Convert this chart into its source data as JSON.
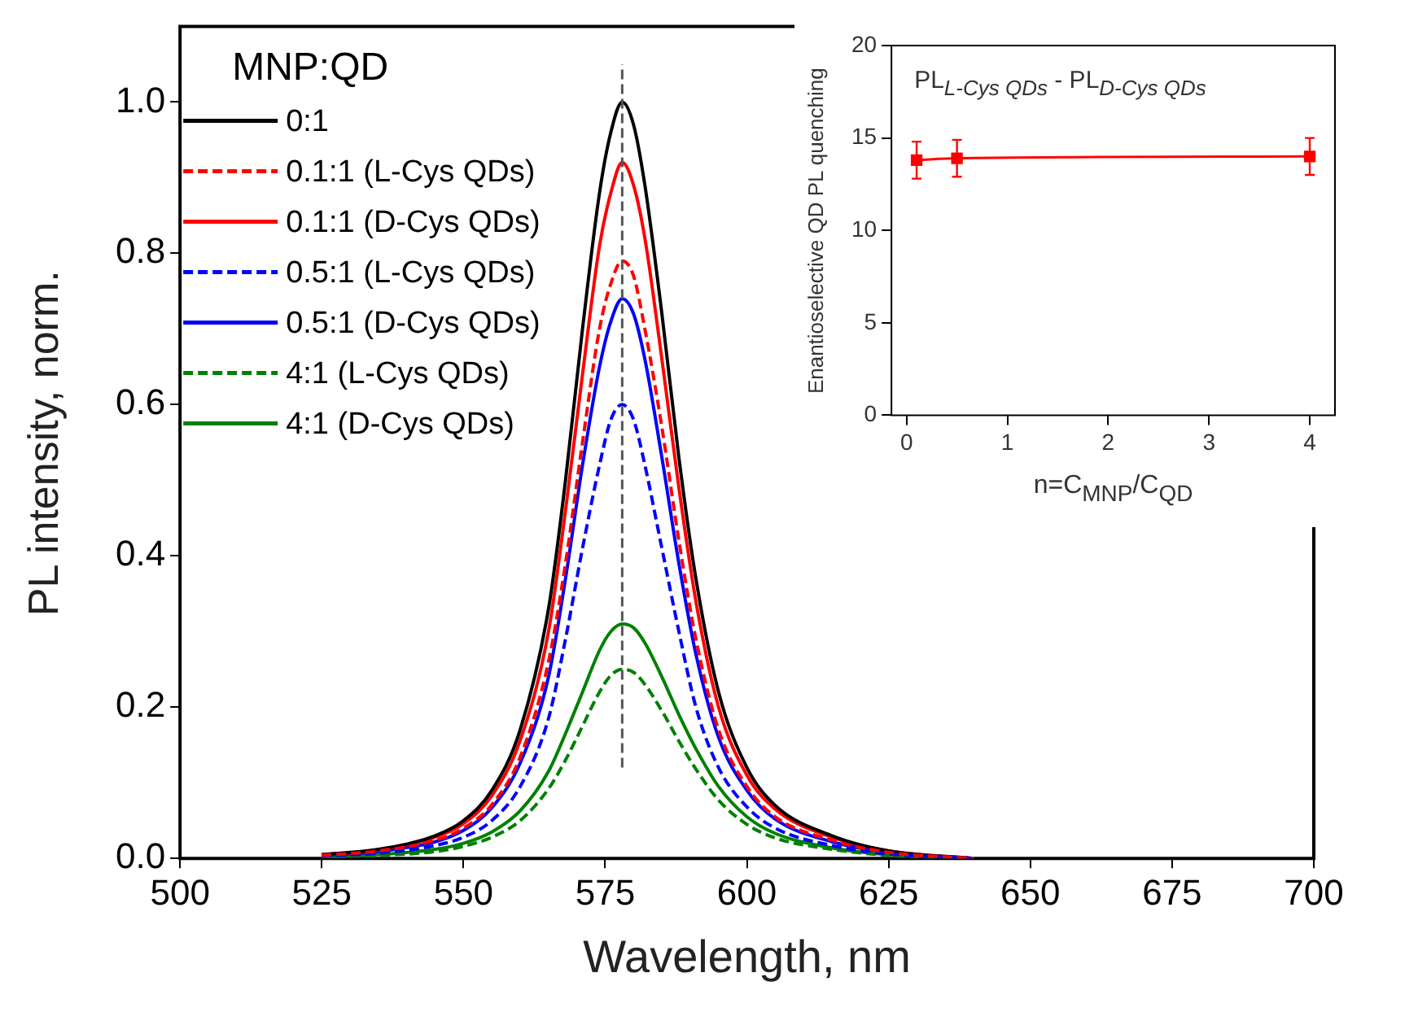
{
  "chart_data": [
    {
      "type": "line",
      "xlabel": "Wavelength, nm",
      "ylabel": "PL intensity, norm.",
      "legend_title": "MNP:QD",
      "legend": "top left",
      "marker": "none",
      "grid": false,
      "x": [
        525,
        535,
        545,
        550,
        555,
        560,
        565,
        568,
        571,
        574,
        576,
        578,
        580,
        582,
        585,
        588,
        591,
        595,
        600,
        605,
        615,
        625,
        640
      ],
      "xlim": [
        500,
        700
      ],
      "xticks": [
        500,
        525,
        550,
        575,
        600,
        625,
        650,
        675,
        700
      ],
      "ylim": [
        0,
        1.1
      ],
      "yticks": [
        {
          "value": 0,
          "label": "0.0"
        },
        {
          "value": 0.2,
          "label": "0.2"
        },
        {
          "value": 0.4,
          "label": "0.4"
        },
        {
          "value": 0.6,
          "label": "0.6"
        },
        {
          "value": 0.8,
          "label": "0.8"
        },
        {
          "value": 1.0,
          "label": "1.0"
        }
      ],
      "ref_lines": [
        {
          "axis": "x",
          "value": 578,
          "color": "#555555",
          "line_style": "dashed"
        }
      ],
      "series": [
        {
          "name": "0:1",
          "color": "#000000",
          "line_style": "solid",
          "values": [
            0.005,
            0.012,
            0.03,
            0.05,
            0.09,
            0.17,
            0.33,
            0.5,
            0.7,
            0.88,
            0.96,
            1.0,
            0.97,
            0.89,
            0.72,
            0.53,
            0.37,
            0.22,
            0.12,
            0.07,
            0.03,
            0.01,
            0
          ]
        },
        {
          "name": "0.1:1 (L-Cys QDs)",
          "color": "#ff0000",
          "line_style": "dashed",
          "values": [
            0.004,
            0.01,
            0.024,
            0.04,
            0.071,
            0.134,
            0.26,
            0.39,
            0.55,
            0.7,
            0.76,
            0.79,
            0.77,
            0.7,
            0.57,
            0.42,
            0.29,
            0.17,
            0.095,
            0.055,
            0.024,
            0.008,
            0
          ]
        },
        {
          "name": "0.1:1 (D-Cys QDs)",
          "color": "#ff0000",
          "line_style": "solid",
          "values": [
            0.005,
            0.011,
            0.028,
            0.046,
            0.083,
            0.156,
            0.3,
            0.46,
            0.64,
            0.81,
            0.88,
            0.92,
            0.89,
            0.82,
            0.66,
            0.49,
            0.34,
            0.2,
            0.11,
            0.065,
            0.028,
            0.01,
            0
          ]
        },
        {
          "name": "0.5:1 (L-Cys QDs)",
          "color": "#0000ff",
          "line_style": "dashed",
          "values": [
            0.003,
            0.007,
            0.017,
            0.028,
            0.05,
            0.095,
            0.185,
            0.29,
            0.41,
            0.52,
            0.58,
            0.6,
            0.58,
            0.52,
            0.41,
            0.3,
            0.2,
            0.12,
            0.068,
            0.04,
            0.017,
            0.006,
            0
          ]
        },
        {
          "name": "0.5:1 (D-Cys QDs)",
          "color": "#0000ff",
          "line_style": "solid",
          "values": [
            0.004,
            0.009,
            0.022,
            0.037,
            0.067,
            0.126,
            0.24,
            0.37,
            0.52,
            0.65,
            0.71,
            0.74,
            0.72,
            0.66,
            0.53,
            0.39,
            0.27,
            0.16,
            0.09,
            0.052,
            0.022,
            0.008,
            0
          ]
        },
        {
          "name": "4:1 (L-Cys QDs)",
          "color": "#008000",
          "line_style": "dashed",
          "values": [
            0.002,
            0.004,
            0.009,
            0.016,
            0.028,
            0.05,
            0.092,
            0.13,
            0.175,
            0.22,
            0.242,
            0.25,
            0.246,
            0.23,
            0.195,
            0.155,
            0.118,
            0.077,
            0.045,
            0.027,
            0.012,
            0.004,
            0
          ]
        },
        {
          "name": "4:1 (D-Cys QDs)",
          "color": "#008000",
          "line_style": "solid",
          "values": [
            0.002,
            0.005,
            0.012,
            0.02,
            0.035,
            0.063,
            0.115,
            0.165,
            0.22,
            0.275,
            0.3,
            0.31,
            0.305,
            0.285,
            0.24,
            0.19,
            0.145,
            0.095,
            0.055,
            0.033,
            0.014,
            0.005,
            0
          ]
        }
      ]
    },
    {
      "type": "line",
      "xlabel": "n=C$_{MNP}$/C$_{QD}$",
      "ylabel": "Enantioselective QD PL quenching",
      "marker": "square",
      "grid": false,
      "annotations": [
        "PL$_{L-Cys QDs}$ - PL$_{D-Cys QDs}$"
      ],
      "x": [
        0.1,
        0.5,
        4
      ],
      "xlim": [
        -0.15,
        4.25
      ],
      "xticks": [
        0,
        1,
        2,
        3,
        4
      ],
      "ylim": [
        0,
        20
      ],
      "yticks": [
        0,
        5,
        10,
        15,
        20
      ],
      "series": [
        {
          "color": "#ff0000",
          "values": [
            13.8,
            13.9,
            14.0
          ],
          "errors": [
            1,
            1,
            1
          ]
        }
      ]
    }
  ]
}
